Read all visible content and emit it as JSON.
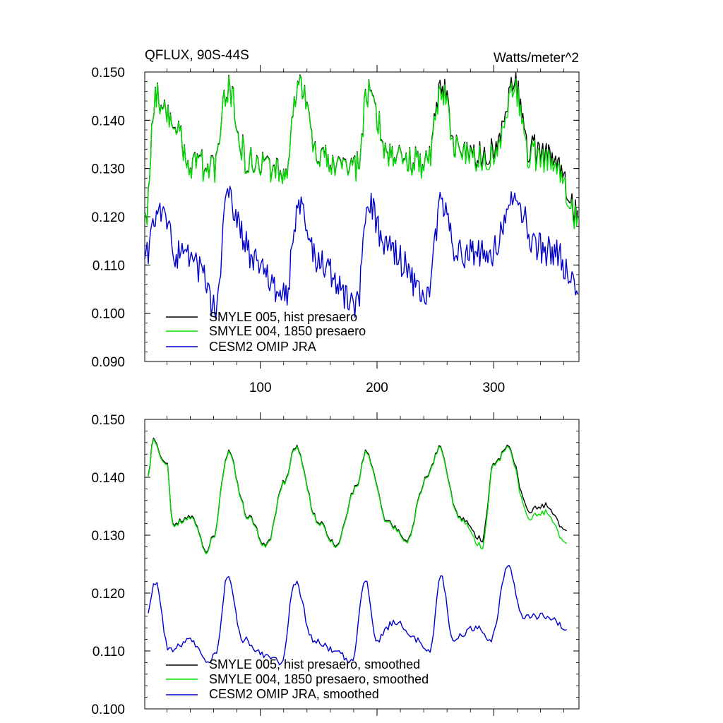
{
  "chart_data": [
    {
      "type": "line",
      "title_left": "QFLUX, 90S-44S",
      "title_right": "Watts/meter^2",
      "xlabel": "",
      "ylabel": "",
      "xlim": [
        1,
        373
      ],
      "ylim": [
        0.09,
        0.15
      ],
      "x_ticks": [
        100,
        200,
        300
      ],
      "x_tick_labels": [
        "100",
        "200",
        "300"
      ],
      "y_ticks": [
        0.09,
        0.1,
        0.11,
        0.12,
        0.13,
        0.14,
        0.15
      ],
      "y_tick_labels": [
        "0.090",
        "0.100",
        "0.110",
        "0.120",
        "0.130",
        "0.140",
        "0.150"
      ],
      "legend_placement": "lower-left",
      "series": [
        {
          "name": "SMYLE 005, hist presaero",
          "color": "#000000",
          "x": [
            1,
            10,
            25,
            40,
            60,
            72,
            90,
            121,
            133,
            150,
            182,
            193,
            210,
            243,
            255,
            270,
            300,
            318,
            330,
            350,
            372
          ],
          "values": [
            0.118,
            0.145,
            0.139,
            0.131,
            0.13,
            0.146,
            0.131,
            0.129,
            0.147,
            0.132,
            0.13,
            0.146,
            0.133,
            0.131,
            0.147,
            0.133,
            0.133,
            0.148,
            0.134,
            0.132,
            0.12
          ]
        },
        {
          "name": "SMYLE 004, 1850 presaero",
          "color": "#00dd00",
          "x": [
            1,
            10,
            25,
            40,
            60,
            72,
            90,
            121,
            133,
            150,
            182,
            193,
            210,
            243,
            255,
            270,
            300,
            318,
            330,
            350,
            372
          ],
          "values": [
            0.118,
            0.145,
            0.139,
            0.131,
            0.13,
            0.146,
            0.131,
            0.129,
            0.147,
            0.132,
            0.13,
            0.146,
            0.133,
            0.131,
            0.146,
            0.133,
            0.132,
            0.147,
            0.133,
            0.131,
            0.119
          ]
        },
        {
          "name": "CESM2 OMIP JRA",
          "color": "#0000cc",
          "x": [
            1,
            12,
            30,
            50,
            61,
            72,
            95,
            121,
            133,
            150,
            182,
            193,
            210,
            243,
            255,
            270,
            300,
            318,
            335,
            355,
            372
          ],
          "values": [
            0.111,
            0.122,
            0.112,
            0.109,
            0.101,
            0.124,
            0.111,
            0.103,
            0.123,
            0.111,
            0.101,
            0.122,
            0.113,
            0.104,
            0.123,
            0.112,
            0.113,
            0.125,
            0.114,
            0.112,
            0.104
          ]
        }
      ]
    },
    {
      "type": "line",
      "xlabel": "",
      "ylabel": "",
      "xlim": [
        1,
        373
      ],
      "ylim": [
        0.1,
        0.15
      ],
      "x_ticks": [
        100,
        200,
        300
      ],
      "y_ticks": [
        0.1,
        0.11,
        0.12,
        0.13,
        0.14,
        0.15
      ],
      "y_tick_labels": [
        "0.100",
        "0.110",
        "0.120",
        "0.130",
        "0.140",
        "0.150"
      ],
      "legend_placement": "lower-left",
      "series": [
        {
          "name": "SMYLE 005, hist presaero, smoothed",
          "color": "#000000",
          "x": [
            4,
            8,
            20,
            25,
            40,
            55,
            60,
            72,
            90,
            105,
            121,
            130,
            150,
            165,
            182,
            190,
            210,
            225,
            243,
            253,
            270,
            290,
            300,
            312,
            330,
            345,
            363
          ],
          "values": [
            0.14,
            0.146,
            0.142,
            0.132,
            0.133,
            0.127,
            0.13,
            0.144,
            0.133,
            0.128,
            0.139,
            0.145,
            0.132,
            0.128,
            0.138,
            0.144,
            0.132,
            0.129,
            0.14,
            0.145,
            0.133,
            0.129,
            0.142,
            0.145,
            0.134,
            0.135,
            0.13
          ]
        },
        {
          "name": "SMYLE 004, 1850 presaero, smoothed",
          "color": "#00dd00",
          "x": [
            4,
            8,
            20,
            25,
            40,
            55,
            60,
            72,
            90,
            105,
            121,
            130,
            150,
            165,
            182,
            190,
            210,
            225,
            243,
            253,
            270,
            290,
            300,
            312,
            330,
            345,
            363
          ],
          "values": [
            0.14,
            0.146,
            0.142,
            0.132,
            0.133,
            0.127,
            0.13,
            0.144,
            0.133,
            0.128,
            0.139,
            0.145,
            0.132,
            0.128,
            0.138,
            0.144,
            0.132,
            0.129,
            0.14,
            0.145,
            0.133,
            0.128,
            0.142,
            0.145,
            0.133,
            0.134,
            0.128
          ]
        },
        {
          "name": "CESM2 OMIP JRA, smoothed",
          "color": "#0000cc",
          "x": [
            4,
            10,
            22,
            40,
            55,
            62,
            72,
            85,
            105,
            118,
            130,
            145,
            165,
            178,
            190,
            200,
            215,
            235,
            245,
            255,
            265,
            285,
            298,
            312,
            325,
            345,
            363
          ],
          "values": [
            0.117,
            0.122,
            0.11,
            0.112,
            0.108,
            0.11,
            0.123,
            0.112,
            0.109,
            0.108,
            0.122,
            0.112,
            0.11,
            0.108,
            0.122,
            0.112,
            0.115,
            0.112,
            0.11,
            0.123,
            0.112,
            0.114,
            0.112,
            0.125,
            0.116,
            0.116,
            0.114
          ]
        }
      ]
    }
  ]
}
